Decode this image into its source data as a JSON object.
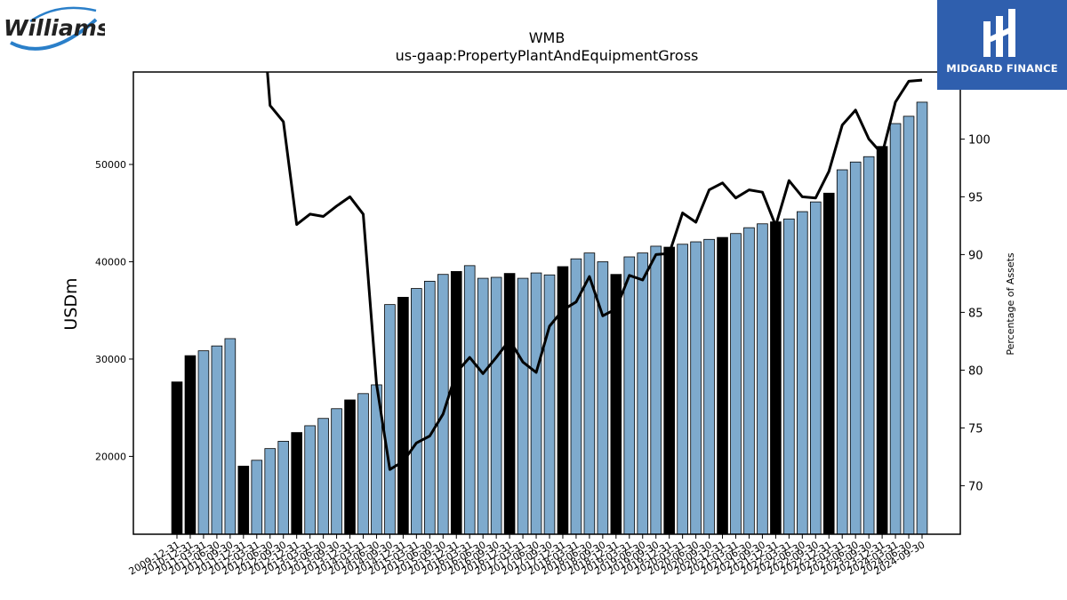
{
  "logos": {
    "left_text": "Williams",
    "right_text": "MIDGARD FINANCE"
  },
  "colors": {
    "bar_fill": "#7eaacd",
    "bar_highlight": "#000000",
    "line": "#000000",
    "logo_bg": "#2f5fae"
  },
  "chart_data": {
    "type": "bar",
    "title": "WMB",
    "subtitle": "us-gaap:PropertyPlantAndEquipmentGross",
    "ylabel": "USDm",
    "y2label": "Percentage of Assets",
    "ylim": [
      12000,
      59500
    ],
    "y2lim": [
      65.8,
      105.8
    ],
    "yticks": [
      20000,
      30000,
      40000,
      50000
    ],
    "y2ticks": [
      70,
      75,
      80,
      85,
      90,
      95,
      100
    ],
    "categories": [
      "2009-12-31",
      "2010-12-31",
      "2011-03-31",
      "2011-06-30",
      "2011-09-30",
      "2011-12-31",
      "2012-03-31",
      "2012-06-30",
      "2012-09-30",
      "2012-12-31",
      "2013-03-31",
      "2013-06-30",
      "2013-09-30",
      "2013-12-31",
      "2014-03-31",
      "2014-06-30",
      "2014-09-30",
      "2014-12-31",
      "2015-03-31",
      "2015-06-30",
      "2015-09-30",
      "2015-12-31",
      "2016-03-31",
      "2016-06-30",
      "2016-09-30",
      "2016-12-31",
      "2017-03-31",
      "2017-06-30",
      "2017-09-30",
      "2017-12-31",
      "2018-03-31",
      "2018-06-30",
      "2018-09-30",
      "2018-12-31",
      "2019-03-31",
      "2019-06-30",
      "2019-09-30",
      "2019-12-31",
      "2020-03-31",
      "2020-06-30",
      "2020-09-30",
      "2020-12-31",
      "2021-03-31",
      "2021-06-30",
      "2021-09-30",
      "2021-12-31",
      "2022-03-31",
      "2022-06-30",
      "2022-09-30",
      "2022-12-31",
      "2023-03-31",
      "2023-06-30",
      "2023-09-30",
      "2023-12-31",
      "2024-03-31",
      "2024-06-30",
      "2024-09-30"
    ],
    "series": [
      {
        "kind": "bar",
        "values": [
          27650,
          30350,
          30850,
          31350,
          32100,
          19000,
          19600,
          20800,
          21550,
          22450,
          23150,
          23900,
          24900,
          25800,
          26450,
          27350,
          35600,
          36350,
          37250,
          38000,
          38700,
          39000,
          39600,
          38300,
          38400,
          38800,
          38300,
          38850,
          38650,
          39500,
          40300,
          40900,
          40000,
          38700,
          40500,
          40900,
          41600,
          41500,
          41800,
          42050,
          42300,
          42500,
          42900,
          43500,
          43900,
          44100,
          44400,
          45150,
          46150,
          47050,
          49450,
          50250,
          50800,
          51850,
          54200,
          54950,
          56400
        ],
        "highlight": [
          true,
          true,
          false,
          false,
          false,
          true,
          false,
          false,
          false,
          true,
          false,
          false,
          false,
          true,
          false,
          false,
          false,
          true,
          false,
          false,
          false,
          true,
          false,
          false,
          false,
          true,
          false,
          false,
          false,
          true,
          false,
          false,
          false,
          true,
          false,
          false,
          false,
          true,
          false,
          false,
          false,
          true,
          false,
          false,
          false,
          true,
          false,
          false,
          false,
          true,
          false,
          false,
          false,
          true,
          false,
          false,
          false
        ]
      },
      {
        "kind": "line",
        "axis": "right",
        "values": [
          null,
          null,
          null,
          null,
          null,
          null,
          null,
          102.9,
          101.5,
          92.6,
          93.5,
          93.3,
          94.2,
          95.0,
          93.5,
          78.8,
          71.4,
          72.1,
          73.7,
          74.3,
          76.2,
          79.8,
          81.1,
          79.7,
          81.1,
          82.6,
          80.7,
          79.8,
          83.8,
          85.2,
          85.9,
          88.1,
          84.7,
          85.3,
          88.2,
          87.8,
          90.0,
          90.1,
          93.6,
          92.8,
          95.6,
          96.2,
          94.9,
          95.6,
          95.4,
          92.5,
          96.4,
          95.0,
          94.9,
          97.2,
          101.2,
          102.5,
          100.0,
          98.7,
          103.2,
          105.0,
          105.1
        ]
      }
    ]
  }
}
